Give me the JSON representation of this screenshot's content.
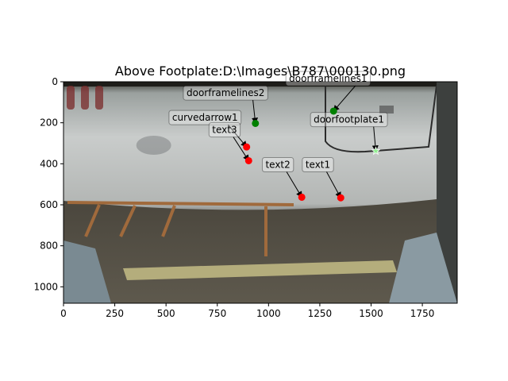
{
  "chart_data": {
    "type": "scatter",
    "title": "Above Footplate:D:\\Images\\B787\\000130.png",
    "xlim": [
      0,
      1920
    ],
    "ylim": [
      1080,
      0
    ],
    "y_inverted": true,
    "xticks": [
      0,
      250,
      500,
      750,
      1000,
      1250,
      1500,
      1750
    ],
    "yticks": [
      0,
      200,
      400,
      600,
      800,
      1000
    ],
    "background": "photograph of aircraft fuselage door area above footplate",
    "points": [
      {
        "label": "doorframelines1",
        "x": 1317,
        "y": 143,
        "color": "#008000",
        "marker": "circle",
        "label_x": 1100,
        "label_y": 0
      },
      {
        "label": "doorframelines2",
        "x": 936,
        "y": 203,
        "color": "#008000",
        "marker": "circle",
        "label_x": 600,
        "label_y": 70
      },
      {
        "label": "doorfootplate1",
        "x": 1523,
        "y": 338,
        "color": "#90ee90",
        "marker": "star",
        "label_x": 1220,
        "label_y": 200
      },
      {
        "label": "curvedarrow1",
        "x": 893,
        "y": 318,
        "color": "#ff0000",
        "marker": "circle",
        "label_x": 530,
        "label_y": 190
      },
      {
        "label": "text3",
        "x": 903,
        "y": 385,
        "color": "#ff0000",
        "marker": "circle",
        "label_x": 725,
        "label_y": 250
      },
      {
        "label": "text2",
        "x": 1162,
        "y": 563,
        "color": "#ff0000",
        "marker": "circle",
        "label_x": 985,
        "label_y": 420
      },
      {
        "label": "text1",
        "x": 1352,
        "y": 566,
        "color": "#ff0000",
        "marker": "circle",
        "label_x": 1180,
        "label_y": 420
      }
    ]
  }
}
